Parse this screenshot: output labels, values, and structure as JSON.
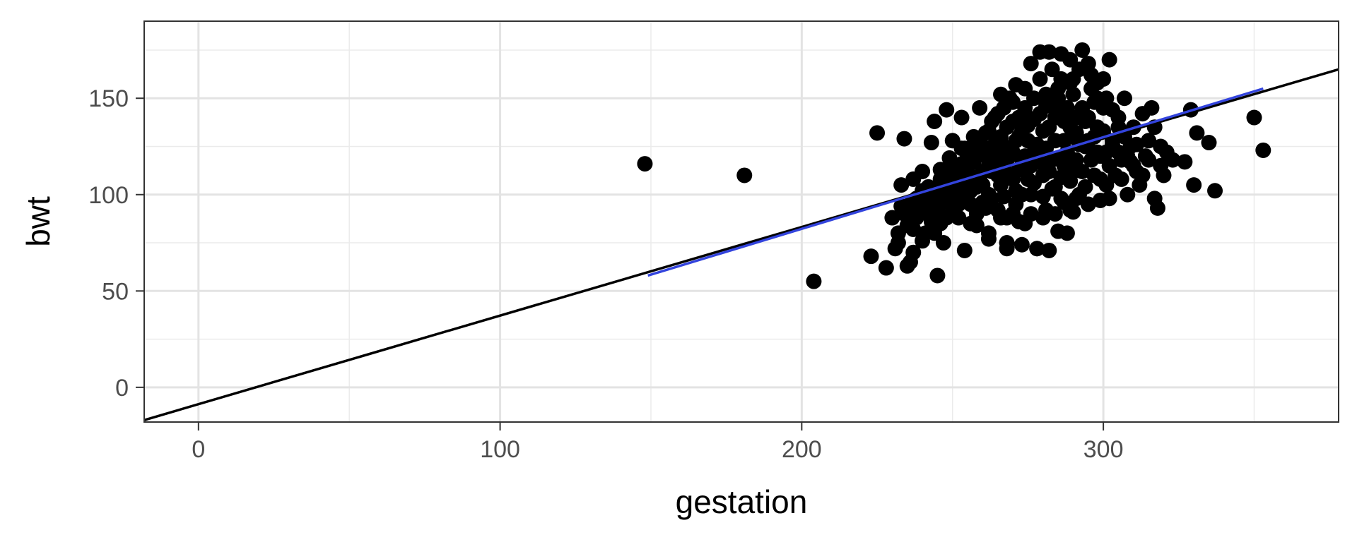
{
  "chart_data": {
    "type": "scatter",
    "xlabel": "gestation",
    "ylabel": "bwt",
    "xlim": [
      -18,
      378
    ],
    "ylim": [
      -18,
      190
    ],
    "x_ticks": [
      0,
      100,
      200,
      300
    ],
    "x_tick_labels": [
      "0",
      "100",
      "200",
      "300"
    ],
    "y_ticks": [
      0,
      50,
      100,
      150
    ],
    "y_tick_labels": [
      "0",
      "50",
      "100",
      "150"
    ],
    "x_minor_ticks": [
      50,
      150,
      250,
      350
    ],
    "y_minor_ticks": [
      25,
      75,
      125,
      175
    ],
    "grid": true,
    "points": [
      [
        148,
        116
      ],
      [
        181,
        110
      ],
      [
        204,
        55
      ],
      [
        223,
        68
      ],
      [
        225,
        132
      ],
      [
        228,
        62
      ],
      [
        230,
        88
      ],
      [
        232,
        75
      ],
      [
        233,
        105
      ],
      [
        234,
        129
      ],
      [
        235,
        63
      ],
      [
        236,
        65
      ],
      [
        239,
        90
      ],
      [
        240,
        76
      ],
      [
        243,
        127
      ],
      [
        244,
        138
      ],
      [
        245,
        58
      ],
      [
        246,
        108
      ],
      [
        247,
        75
      ],
      [
        248,
        144
      ],
      [
        249,
        100
      ],
      [
        250,
        128
      ],
      [
        252,
        95
      ],
      [
        253,
        140
      ],
      [
        254,
        71
      ],
      [
        255,
        112
      ],
      [
        256,
        85
      ],
      [
        257,
        130
      ],
      [
        258,
        90
      ],
      [
        259,
        145
      ],
      [
        260,
        105
      ],
      [
        261,
        120
      ],
      [
        262,
        80
      ],
      [
        263,
        98
      ],
      [
        264,
        140
      ],
      [
        265,
        115
      ],
      [
        266,
        88
      ],
      [
        267,
        125
      ],
      [
        268,
        75
      ],
      [
        269,
        150
      ],
      [
        270,
        108
      ],
      [
        271,
        95
      ],
      [
        272,
        130
      ],
      [
        273,
        118
      ],
      [
        274,
        85
      ],
      [
        275,
        140
      ],
      [
        276,
        100
      ],
      [
        277,
        122
      ],
      [
        278,
        72
      ],
      [
        279,
        160
      ],
      [
        280,
        110
      ],
      [
        281,
        92
      ],
      [
        282,
        135
      ],
      [
        283,
        118
      ],
      [
        284,
        104
      ],
      [
        285,
        150
      ],
      [
        286,
        98
      ],
      [
        287,
        128
      ],
      [
        288,
        80
      ],
      [
        289,
        170
      ],
      [
        290,
        112
      ],
      [
        291,
        140
      ],
      [
        292,
        100
      ],
      [
        293,
        175
      ],
      [
        294,
        125
      ],
      [
        295,
        95
      ],
      [
        296,
        155
      ],
      [
        297,
        110
      ],
      [
        298,
        135
      ],
      [
        299,
        120
      ],
      [
        300,
        160
      ],
      [
        301,
        105
      ],
      [
        302,
        170
      ],
      [
        303,
        128
      ],
      [
        304,
        110
      ],
      [
        305,
        140
      ],
      [
        306,
        118
      ],
      [
        307,
        150
      ],
      [
        308,
        100
      ],
      [
        309,
        125
      ],
      [
        310,
        135
      ],
      [
        311,
        112
      ],
      [
        312,
        105
      ],
      [
        313,
        142
      ],
      [
        314,
        120
      ],
      [
        315,
        118
      ],
      [
        316,
        145
      ],
      [
        317,
        98
      ],
      [
        318,
        93
      ],
      [
        319,
        125
      ],
      [
        320,
        110
      ],
      [
        321,
        122
      ],
      [
        323,
        118
      ],
      [
        327,
        117
      ],
      [
        329,
        144
      ],
      [
        330,
        105
      ],
      [
        331,
        132
      ],
      [
        335,
        127
      ],
      [
        337,
        102
      ],
      [
        350,
        140
      ],
      [
        353,
        123
      ],
      [
        282,
        71
      ],
      [
        278,
        72
      ],
      [
        285,
        81
      ],
      [
        268,
        72
      ],
      [
        273,
        74
      ],
      [
        290,
        91
      ],
      [
        262,
        77
      ],
      [
        258,
        84
      ],
      [
        252,
        88
      ],
      [
        270,
        122
      ],
      [
        275,
        128
      ],
      [
        280,
        133
      ],
      [
        284,
        140
      ],
      [
        288,
        145
      ],
      [
        290,
        152
      ],
      [
        286,
        160
      ],
      [
        283,
        165
      ],
      [
        279,
        174
      ],
      [
        282,
        174
      ],
      [
        286,
        173
      ],
      [
        276,
        168
      ],
      [
        271,
        157
      ],
      [
        266,
        152
      ],
      [
        265,
        142
      ],
      [
        262,
        133
      ],
      [
        260,
        125
      ],
      [
        257,
        117
      ],
      [
        255,
        107
      ],
      [
        251,
        100
      ],
      [
        248,
        96
      ],
      [
        245,
        92
      ],
      [
        243,
        86
      ],
      [
        240,
        112
      ],
      [
        238,
        98
      ],
      [
        237,
        82
      ],
      [
        242,
        104
      ],
      [
        246,
        113
      ],
      [
        249,
        119
      ],
      [
        253,
        124
      ],
      [
        256,
        102
      ],
      [
        259,
        109
      ],
      [
        261,
        93
      ],
      [
        263,
        112
      ],
      [
        264,
        126
      ],
      [
        266,
        105
      ],
      [
        267,
        99
      ],
      [
        268,
        118
      ],
      [
        269,
        110
      ],
      [
        270,
        90
      ],
      [
        271,
        102
      ],
      [
        272,
        113
      ],
      [
        273,
        100
      ],
      [
        274,
        120
      ],
      [
        275,
        108
      ],
      [
        276,
        115
      ],
      [
        277,
        106
      ],
      [
        278,
        126
      ],
      [
        279,
        117
      ],
      [
        280,
        99
      ],
      [
        281,
        124
      ],
      [
        282,
        112
      ],
      [
        283,
        103
      ],
      [
        284,
        128
      ],
      [
        285,
        119
      ],
      [
        286,
        109
      ],
      [
        287,
        115
      ],
      [
        288,
        122
      ],
      [
        289,
        107
      ],
      [
        290,
        130
      ],
      [
        291,
        118
      ],
      [
        292,
        126
      ],
      [
        293,
        112
      ],
      [
        294,
        138
      ],
      [
        295,
        128
      ],
      [
        296,
        118
      ],
      [
        297,
        130
      ],
      [
        298,
        122
      ],
      [
        299,
        108
      ],
      [
        300,
        133
      ],
      [
        301,
        122
      ],
      [
        302,
        115
      ],
      [
        303,
        126
      ],
      [
        305,
        122
      ],
      [
        307,
        130
      ],
      [
        309,
        117
      ],
      [
        311,
        126
      ],
      [
        306,
        108
      ],
      [
        302,
        98
      ],
      [
        299,
        97
      ],
      [
        294,
        104
      ],
      [
        291,
        98
      ],
      [
        289,
        92
      ],
      [
        287,
        96
      ],
      [
        284,
        90
      ],
      [
        280,
        88
      ],
      [
        276,
        90
      ],
      [
        272,
        86
      ],
      [
        268,
        88
      ],
      [
        265,
        92
      ],
      [
        262,
        100
      ],
      [
        260,
        96
      ],
      [
        258,
        104
      ],
      [
        256,
        118
      ],
      [
        254,
        124
      ],
      [
        252,
        112
      ],
      [
        250,
        108
      ],
      [
        248,
        112
      ],
      [
        246,
        102
      ],
      [
        244,
        98
      ],
      [
        241,
        92
      ],
      [
        239,
        96
      ],
      [
        236,
        95
      ],
      [
        234,
        90
      ],
      [
        232,
        80
      ],
      [
        231,
        72
      ],
      [
        237,
        70
      ],
      [
        241,
        80
      ],
      [
        265,
        110
      ],
      [
        267,
        114
      ],
      [
        269,
        121
      ],
      [
        271,
        128
      ],
      [
        273,
        133
      ],
      [
        275,
        136
      ],
      [
        277,
        139
      ],
      [
        279,
        142
      ],
      [
        281,
        146
      ],
      [
        283,
        149
      ],
      [
        285,
        144
      ],
      [
        287,
        138
      ],
      [
        289,
        135
      ],
      [
        291,
        132
      ],
      [
        293,
        145
      ],
      [
        295,
        140
      ],
      [
        297,
        148
      ],
      [
        298,
        158
      ],
      [
        301,
        150
      ],
      [
        303,
        144
      ],
      [
        305,
        135
      ],
      [
        308,
        120
      ],
      [
        310,
        115
      ],
      [
        313,
        110
      ],
      [
        315,
        128
      ],
      [
        317,
        135
      ],
      [
        319,
        115
      ],
      [
        274,
        145
      ],
      [
        272,
        140
      ],
      [
        270,
        138
      ],
      [
        268,
        135
      ],
      [
        266,
        130
      ],
      [
        264,
        120
      ],
      [
        262,
        115
      ],
      [
        260,
        112
      ],
      [
        258,
        120
      ],
      [
        256,
        95
      ],
      [
        254,
        98
      ],
      [
        252,
        103
      ],
      [
        250,
        93
      ],
      [
        248,
        88
      ],
      [
        246,
        85
      ],
      [
        244,
        80
      ],
      [
        290,
        160
      ],
      [
        292,
        165
      ],
      [
        296,
        162
      ],
      [
        298,
        150
      ],
      [
        300,
        145
      ],
      [
        295,
        168
      ],
      [
        289,
        158
      ],
      [
        285,
        155
      ],
      [
        281,
        152
      ],
      [
        277,
        150
      ],
      [
        274,
        155
      ],
      [
        270,
        148
      ],
      [
        267,
        145
      ],
      [
        263,
        138
      ],
      [
        261,
        132
      ],
      [
        259,
        128
      ],
      [
        257,
        124
      ],
      [
        255,
        120
      ],
      [
        253,
        116
      ],
      [
        251,
        114
      ],
      [
        249,
        106
      ],
      [
        247,
        104
      ],
      [
        245,
        100
      ],
      [
        243,
        96
      ],
      [
        240,
        102
      ],
      [
        238,
        88
      ],
      [
        235,
        84
      ],
      [
        233,
        94
      ],
      [
        237,
        108
      ]
    ],
    "lines": [
      {
        "name": "",
        "color": "#000000",
        "from": [
          -18,
          -17
        ],
        "to": [
          378,
          165
        ]
      },
      {
        "name": "",
        "color": "#3344dd",
        "from": [
          149,
          58
        ],
        "to": [
          353,
          155
        ]
      }
    ]
  }
}
